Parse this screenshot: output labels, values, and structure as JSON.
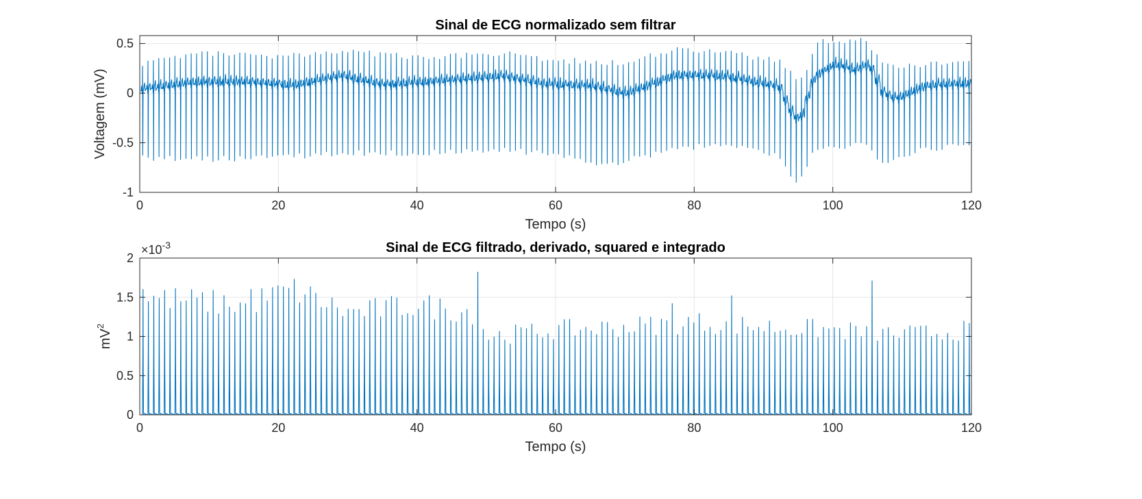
{
  "chart_data": [
    {
      "type": "line",
      "title": "Sinal de ECG normalizado sem filtrar",
      "xlabel": "Tempo (s)",
      "ylabel": "Voltagem (mV)",
      "xlim": [
        0,
        120
      ],
      "ylim": [
        -1,
        0.58
      ],
      "xticks": [
        0,
        20,
        40,
        60,
        80,
        100,
        120
      ],
      "xtick_labels": [
        "0",
        "20",
        "40",
        "60",
        "80",
        "100",
        "120"
      ],
      "yticks": [
        -1,
        -0.5,
        0,
        0.5
      ],
      "ytick_labels": [
        "-1",
        "-0.5",
        "0",
        "0.5"
      ],
      "grid": true,
      "color": "#0072BD",
      "signal": {
        "kind": "ecg",
        "heart_rate_bpm": 77,
        "baseline_mV": [
          [
            0,
            0.03
          ],
          [
            8,
            0.1
          ],
          [
            15,
            0.1
          ],
          [
            22,
            0.07
          ],
          [
            29,
            0.16
          ],
          [
            35,
            0.07
          ],
          [
            45,
            0.12
          ],
          [
            52,
            0.16
          ],
          [
            58,
            0.08
          ],
          [
            65,
            0.06
          ],
          [
            70,
            -0.02
          ],
          [
            77,
            0.17
          ],
          [
            84,
            0.16
          ],
          [
            90,
            0.08
          ],
          [
            92,
            0.05
          ],
          [
            94,
            -0.25
          ],
          [
            95,
            -0.28
          ],
          [
            97,
            0.15
          ],
          [
            100,
            0.28
          ],
          [
            103,
            0.22
          ],
          [
            105,
            0.28
          ],
          [
            107,
            -0.02
          ],
          [
            109,
            -0.07
          ],
          [
            113,
            0.06
          ],
          [
            120,
            0.09
          ]
        ],
        "r_peak_mV": [
          [
            0,
            0.3
          ],
          [
            10,
            0.4
          ],
          [
            20,
            0.36
          ],
          [
            29,
            0.42
          ],
          [
            40,
            0.36
          ],
          [
            52,
            0.4
          ],
          [
            60,
            0.33
          ],
          [
            70,
            0.3
          ],
          [
            77,
            0.45
          ],
          [
            85,
            0.4
          ],
          [
            92,
            0.32
          ],
          [
            95,
            0.1
          ],
          [
            98,
            0.57
          ],
          [
            100,
            0.5
          ],
          [
            104,
            0.55
          ],
          [
            108,
            0.25
          ],
          [
            112,
            0.28
          ],
          [
            120,
            0.3
          ]
        ],
        "s_trough_mV": [
          [
            0,
            -0.65
          ],
          [
            10,
            -0.66
          ],
          [
            20,
            -0.65
          ],
          [
            29,
            -0.6
          ],
          [
            40,
            -0.6
          ],
          [
            52,
            -0.57
          ],
          [
            60,
            -0.62
          ],
          [
            67,
            -0.72
          ],
          [
            70,
            -0.68
          ],
          [
            77,
            -0.55
          ],
          [
            85,
            -0.52
          ],
          [
            92,
            -0.62
          ],
          [
            94,
            -0.9
          ],
          [
            95,
            -0.88
          ],
          [
            97,
            -0.55
          ],
          [
            100,
            -0.55
          ],
          [
            104,
            -0.5
          ],
          [
            107,
            -0.7
          ],
          [
            112,
            -0.58
          ],
          [
            120,
            -0.52
          ]
        ]
      }
    },
    {
      "type": "line",
      "title": "Sinal de ECG filtrado, derivado, squared e integrado",
      "xlabel": "Tempo (s)",
      "ylabel_base": "mV",
      "ylabel_exp": "2",
      "scale_base": "×10",
      "scale_exp": "-3",
      "xlim": [
        0,
        120
      ],
      "ylim": [
        0,
        0.002
      ],
      "xticks": [
        0,
        20,
        40,
        60,
        80,
        100,
        120
      ],
      "xtick_labels": [
        "0",
        "20",
        "40",
        "60",
        "80",
        "100",
        "120"
      ],
      "yticks": [
        0,
        0.0005,
        0.001,
        0.0015,
        0.002
      ],
      "ytick_labels": [
        "0",
        "0.5",
        "1",
        "1.5",
        "2"
      ],
      "grid": true,
      "color": "#0072BD",
      "signal": {
        "kind": "pulse_train",
        "heart_rate_bpm": 77,
        "peak_envelope": [
          [
            0,
            0.0015
          ],
          [
            15,
            0.0014
          ],
          [
            22,
            0.0016
          ],
          [
            30,
            0.0013
          ],
          [
            40,
            0.0014
          ],
          [
            48.5,
            0.0013
          ],
          [
            50,
            0.001
          ],
          [
            60,
            0.00108
          ],
          [
            70,
            0.00112
          ],
          [
            80,
            0.00118
          ],
          [
            90,
            0.00112
          ],
          [
            100,
            0.00108
          ],
          [
            110,
            0.00102
          ],
          [
            120,
            0.00108
          ]
        ],
        "peaks": [
          [
            0.5,
            0.0016
          ],
          [
            16,
            0.0016
          ],
          [
            22,
            0.00173
          ],
          [
            48.8,
            0.00182
          ],
          [
            76.8,
            0.00142
          ],
          [
            85,
            0.00152
          ],
          [
            105.7,
            0.00171
          ]
        ]
      }
    }
  ]
}
